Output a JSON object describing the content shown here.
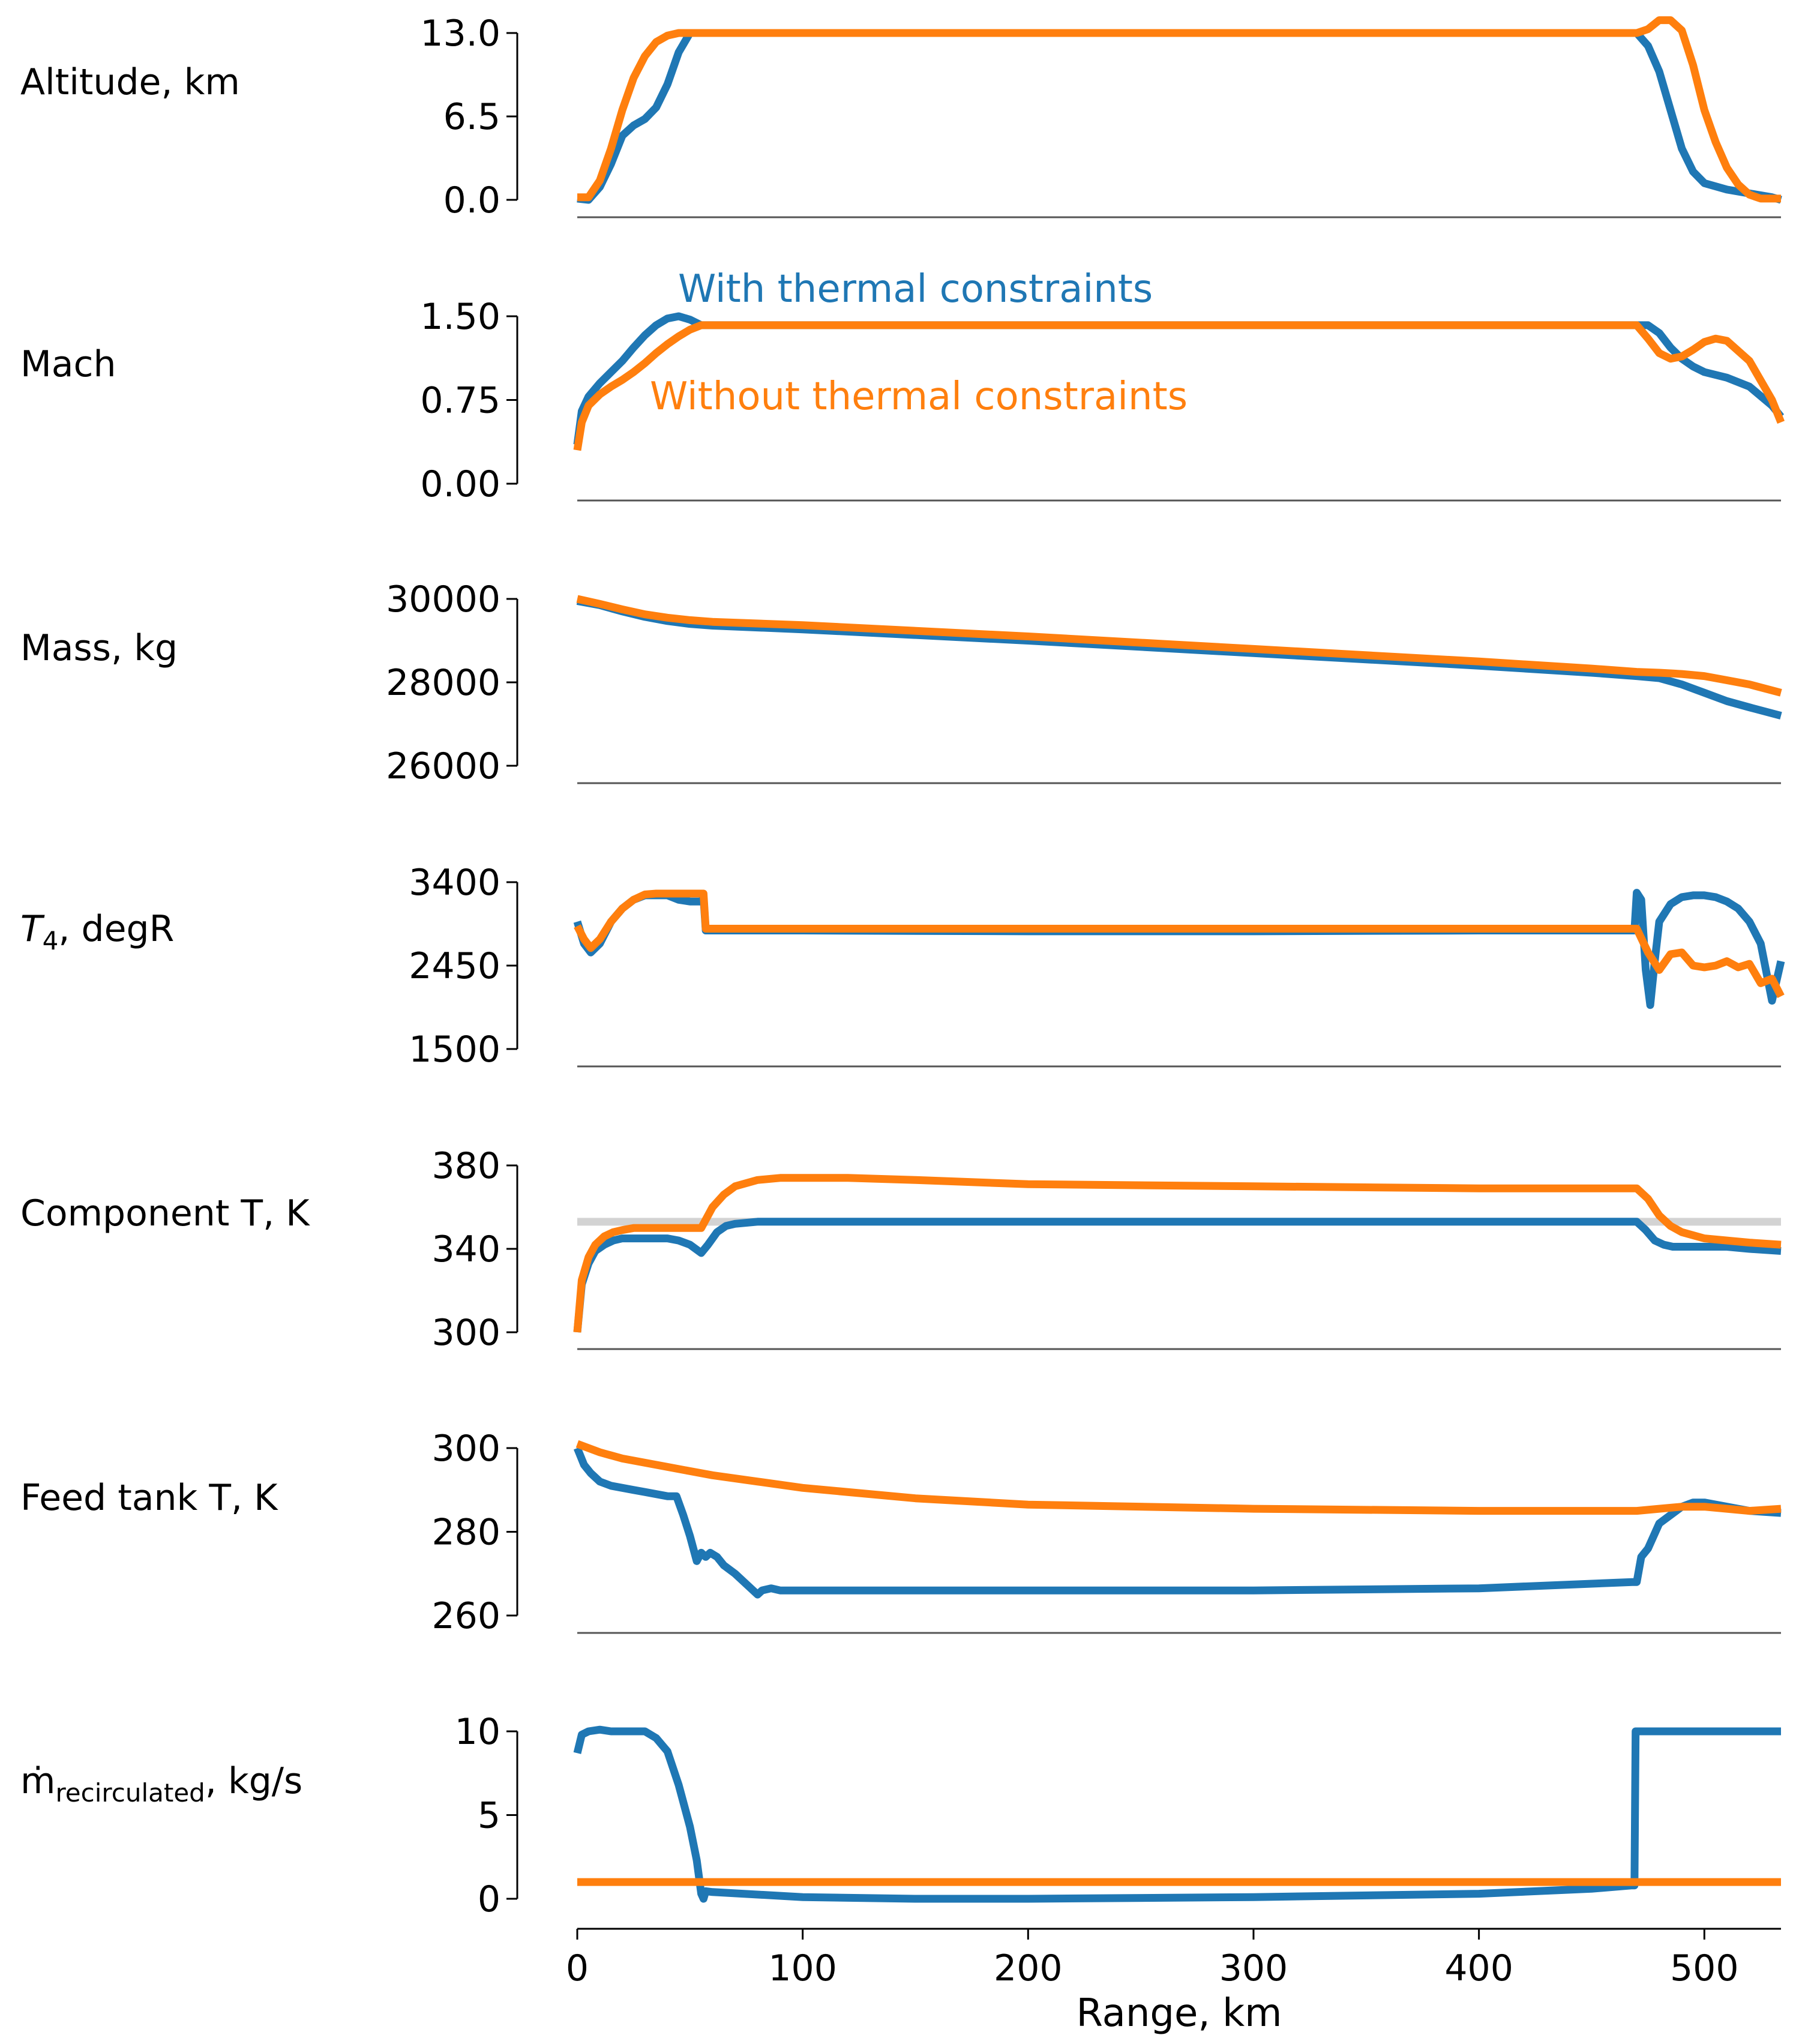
{
  "chart_data": {
    "type": "line",
    "xlabel": "Range, km",
    "xlim": [
      0,
      534
    ],
    "xticks": [
      0,
      100,
      200,
      300,
      400,
      500
    ],
    "colors": {
      "with": "#1f77b4",
      "without": "#ff7f0e",
      "limit": "#d3d3d3"
    },
    "legend": [
      {
        "name": "With thermal constraints",
        "color": "#1f77b4",
        "panel": "Mach"
      },
      {
        "name": "Without thermal constraints",
        "color": "#ff7f0e",
        "panel": "Mach"
      }
    ],
    "panels": [
      {
        "name": "altitude",
        "ylabel": "Altitude, km",
        "ylim": [
          0,
          13.0
        ],
        "yticks": [
          "0.0",
          "6.5",
          "13.0"
        ],
        "series": [
          {
            "name": "With thermal constraints",
            "key": "with",
            "x": [
              0,
              5,
              10,
              15,
              20,
              25,
              30,
              35,
              40,
              45,
              50,
              55,
              470,
              475,
              480,
              485,
              490,
              495,
              500,
              510,
              520,
              530,
              534
            ],
            "y": [
              0.1,
              0.0,
              1.0,
              2.8,
              5.0,
              5.8,
              6.3,
              7.2,
              9.0,
              11.5,
              13.0,
              13.0,
              13.0,
              12.0,
              10.0,
              7.0,
              4.0,
              2.2,
              1.3,
              0.8,
              0.5,
              0.2,
              0.0
            ]
          },
          {
            "name": "Without thermal constraints",
            "key": "without",
            "x": [
              0,
              5,
              10,
              15,
              20,
              25,
              30,
              35,
              40,
              45,
              50,
              55,
              470,
              475,
              480,
              485,
              490,
              495,
              500,
              505,
              510,
              515,
              520,
              525,
              534
            ],
            "y": [
              0.2,
              0.2,
              1.5,
              4.0,
              7.0,
              9.5,
              11.2,
              12.3,
              12.8,
              13.0,
              13.0,
              13.0,
              13.0,
              13.3,
              14.0,
              14.0,
              13.2,
              10.5,
              7.0,
              4.5,
              2.5,
              1.2,
              0.4,
              0.1,
              0.1
            ]
          }
        ]
      },
      {
        "name": "mach",
        "ylabel": "Mach",
        "ylim": [
          0,
          1.5
        ],
        "yticks": [
          "0.00",
          "0.75",
          "1.50"
        ],
        "series": [
          {
            "name": "With thermal constraints",
            "key": "with",
            "x": [
              0,
              2,
              5,
              10,
              15,
              20,
              25,
              30,
              35,
              40,
              45,
              50,
              55,
              60,
              470,
              475,
              480,
              485,
              490,
              495,
              500,
              510,
              520,
              530,
              534
            ],
            "y": [
              0.35,
              0.65,
              0.78,
              0.9,
              1.0,
              1.1,
              1.22,
              1.33,
              1.42,
              1.48,
              1.5,
              1.47,
              1.42,
              1.42,
              1.42,
              1.42,
              1.35,
              1.22,
              1.12,
              1.05,
              1.0,
              0.95,
              0.87,
              0.7,
              0.6
            ]
          },
          {
            "name": "Without thermal constraints",
            "key": "without",
            "x": [
              0,
              2,
              5,
              10,
              15,
              20,
              25,
              30,
              35,
              40,
              45,
              50,
              55,
              60,
              470,
              475,
              480,
              485,
              490,
              495,
              500,
              505,
              510,
              520,
              530,
              534
            ],
            "y": [
              0.3,
              0.55,
              0.7,
              0.8,
              0.87,
              0.93,
              1.0,
              1.08,
              1.17,
              1.25,
              1.32,
              1.38,
              1.42,
              1.42,
              1.42,
              1.3,
              1.17,
              1.12,
              1.14,
              1.2,
              1.27,
              1.3,
              1.28,
              1.1,
              0.75,
              0.55
            ]
          }
        ]
      },
      {
        "name": "mass",
        "ylabel": "Mass, kg",
        "ylim": [
          26000,
          30000
        ],
        "yticks": [
          "26000",
          "28000",
          "30000"
        ],
        "series": [
          {
            "name": "With thermal constraints",
            "key": "with",
            "x": [
              0,
              10,
              20,
              30,
              40,
              50,
              60,
              100,
              200,
              300,
              400,
              450,
              470,
              480,
              490,
              500,
              510,
              520,
              534
            ],
            "y": [
              29950,
              29850,
              29700,
              29570,
              29470,
              29400,
              29360,
              29270,
              29000,
              28700,
              28400,
              28230,
              28150,
              28100,
              27950,
              27750,
              27550,
              27400,
              27200
            ]
          },
          {
            "name": "Without thermal constraints",
            "key": "without",
            "x": [
              0,
              10,
              20,
              30,
              40,
              50,
              60,
              100,
              200,
              300,
              400,
              450,
              470,
              480,
              490,
              500,
              510,
              520,
              534
            ],
            "y": [
              30000,
              29880,
              29750,
              29630,
              29550,
              29490,
              29450,
              29370,
              29100,
              28800,
              28500,
              28330,
              28250,
              28230,
              28200,
              28150,
              28050,
              27950,
              27750
            ]
          }
        ]
      },
      {
        "name": "t4",
        "ylabel": "T4, degR",
        "ylabel_main": "T",
        "ylabel_sub": "4",
        "ylabel_rest": ", degR",
        "ylim": [
          1500,
          3400
        ],
        "yticks": [
          "1500",
          "2450",
          "3400"
        ],
        "series": [
          {
            "name": "With thermal constraints",
            "key": "with",
            "x": [
              0,
              3,
              6,
              10,
              15,
              20,
              25,
              30,
              35,
              40,
              45,
              50,
              55,
              56,
              57,
              100,
              200,
              300,
              400,
              468,
              469,
              470,
              472,
              474,
              476,
              478,
              480,
              485,
              490,
              495,
              500,
              505,
              510,
              515,
              520,
              525,
              530,
              534
            ],
            "y": [
              2950,
              2700,
              2600,
              2700,
              2950,
              3100,
              3200,
              3250,
              3250,
              3250,
              3200,
              3180,
              3180,
              3230,
              2850,
              2850,
              2840,
              2840,
              2850,
              2850,
              2850,
              3280,
              3200,
              2400,
              2000,
              2500,
              2950,
              3150,
              3230,
              3250,
              3250,
              3230,
              3180,
              3100,
              2950,
              2700,
              2050,
              2500
            ]
          },
          {
            "name": "Without thermal constraints",
            "key": "without",
            "x": [
              0,
              3,
              6,
              10,
              15,
              20,
              25,
              30,
              35,
              40,
              45,
              50,
              55,
              56,
              57,
              100,
              200,
              300,
              400,
              468,
              469,
              470,
              475,
              480,
              485,
              490,
              495,
              500,
              505,
              510,
              515,
              520,
              525,
              530,
              534
            ],
            "y": [
              2900,
              2750,
              2650,
              2750,
              2950,
              3100,
              3200,
              3260,
              3270,
              3270,
              3270,
              3270,
              3270,
              3270,
              2870,
              2870,
              2870,
              2870,
              2870,
              2870,
              2870,
              2870,
              2600,
              2400,
              2580,
              2600,
              2450,
              2430,
              2450,
              2500,
              2430,
              2470,
              2250,
              2300,
              2100
            ]
          }
        ]
      },
      {
        "name": "component_t",
        "ylabel": "Component T, K",
        "ylim": [
          300,
          380
        ],
        "yticks": [
          "300",
          "340",
          "380"
        ],
        "limit_line": 353,
        "series": [
          {
            "name": "With thermal constraints",
            "key": "with",
            "x": [
              0,
              2,
              5,
              8,
              12,
              16,
              20,
              25,
              30,
              35,
              40,
              45,
              50,
              55,
              58,
              62,
              66,
              70,
              80,
              100,
              200,
              300,
              400,
              468,
              470,
              474,
              478,
              482,
              486,
              490,
              500,
              510,
              520,
              534
            ],
            "y": [
              300,
              323,
              333,
              339,
              342,
              344,
              345,
              345,
              345,
              345,
              345,
              344,
              342,
              338,
              342,
              348,
              351,
              352,
              353,
              353,
              353,
              353,
              353,
              353,
              353,
              349,
              344,
              342,
              341,
              341,
              341,
              341,
              340,
              339
            ]
          },
          {
            "name": "Without thermal constraints",
            "key": "without",
            "x": [
              0,
              2,
              5,
              8,
              12,
              16,
              20,
              25,
              30,
              35,
              40,
              45,
              50,
              55,
              60,
              65,
              70,
              80,
              90,
              100,
              120,
              150,
              200,
              300,
              400,
              468,
              470,
              475,
              480,
              485,
              490,
              500,
              510,
              520,
              534
            ],
            "y": [
              300,
              325,
              336,
              342,
              346,
              348,
              349,
              350,
              350,
              350,
              350,
              350,
              350,
              350,
              360,
              366,
              370,
              373,
              374,
              374,
              374,
              373,
              371,
              370,
              369,
              369,
              369,
              364,
              356,
              351,
              348,
              345,
              344,
              343,
              342
            ]
          }
        ]
      },
      {
        "name": "feed_tank_t",
        "ylabel": "Feed tank T, K",
        "ylim": [
          260,
          300
        ],
        "yticks": [
          "260",
          "280",
          "300"
        ],
        "series": [
          {
            "name": "With thermal constraints",
            "key": "with",
            "x": [
              0,
              3,
              6,
              10,
              15,
              20,
              25,
              30,
              35,
              40,
              44,
              47,
              50,
              53,
              55,
              57,
              59,
              62,
              65,
              70,
              80,
              82,
              86,
              90,
              100,
              200,
              300,
              400,
              468,
              470,
              472,
              475,
              480,
              485,
              490,
              495,
              500,
              510,
              520,
              534
            ],
            "y": [
              300,
              296,
              294,
              292,
              291,
              290.5,
              290,
              289.5,
              289,
              288.5,
              288.5,
              284,
              279,
              273,
              275,
              274,
              275,
              274,
              272,
              270,
              265,
              266,
              266.5,
              266,
              266,
              266,
              266,
              266.5,
              268,
              268,
              274,
              276,
              282,
              284,
              286,
              287,
              287,
              286,
              285,
              284.5
            ]
          },
          {
            "name": "Without thermal constraints",
            "key": "without",
            "x": [
              0,
              10,
              20,
              30,
              40,
              50,
              60,
              80,
              100,
              150,
              200,
              300,
              400,
              470,
              480,
              490,
              500,
              510,
              520,
              534
            ],
            "y": [
              301,
              299,
              297.5,
              296.5,
              295.5,
              294.5,
              293.5,
              292,
              290.5,
              288,
              286.5,
              285.5,
              285,
              285,
              285.5,
              286,
              286,
              285.5,
              285,
              285.5
            ]
          }
        ]
      },
      {
        "name": "m_recirculated",
        "ylabel": "ṁrecirculated, kg/s",
        "ylabel_main": "ṁ",
        "ylabel_sub": "recirculated",
        "ylabel_rest": ", kg/s",
        "ylim": [
          0,
          10
        ],
        "yticks": [
          "0",
          "5",
          "10"
        ],
        "series": [
          {
            "name": "With thermal constraints",
            "key": "with",
            "x": [
              0,
              2,
              5,
              10,
              15,
              20,
              25,
              30,
              35,
              40,
              45,
              50,
              53,
              55,
              56,
              57,
              60,
              100,
              150,
              200,
              300,
              400,
              450,
              468,
              469,
              469.5,
              534
            ],
            "y": [
              8.7,
              9.8,
              10.0,
              10.1,
              10.0,
              10.0,
              10.0,
              10.0,
              9.6,
              8.8,
              6.8,
              4.3,
              2.3,
              0.3,
              0.0,
              0.45,
              0.4,
              0.1,
              0.0,
              0.0,
              0.1,
              0.3,
              0.6,
              0.8,
              0.8,
              10.0,
              10.0
            ]
          },
          {
            "name": "Without thermal constraints",
            "key": "without",
            "x": [
              0,
              534
            ],
            "y": [
              1.0,
              1.0
            ]
          }
        ]
      }
    ]
  }
}
